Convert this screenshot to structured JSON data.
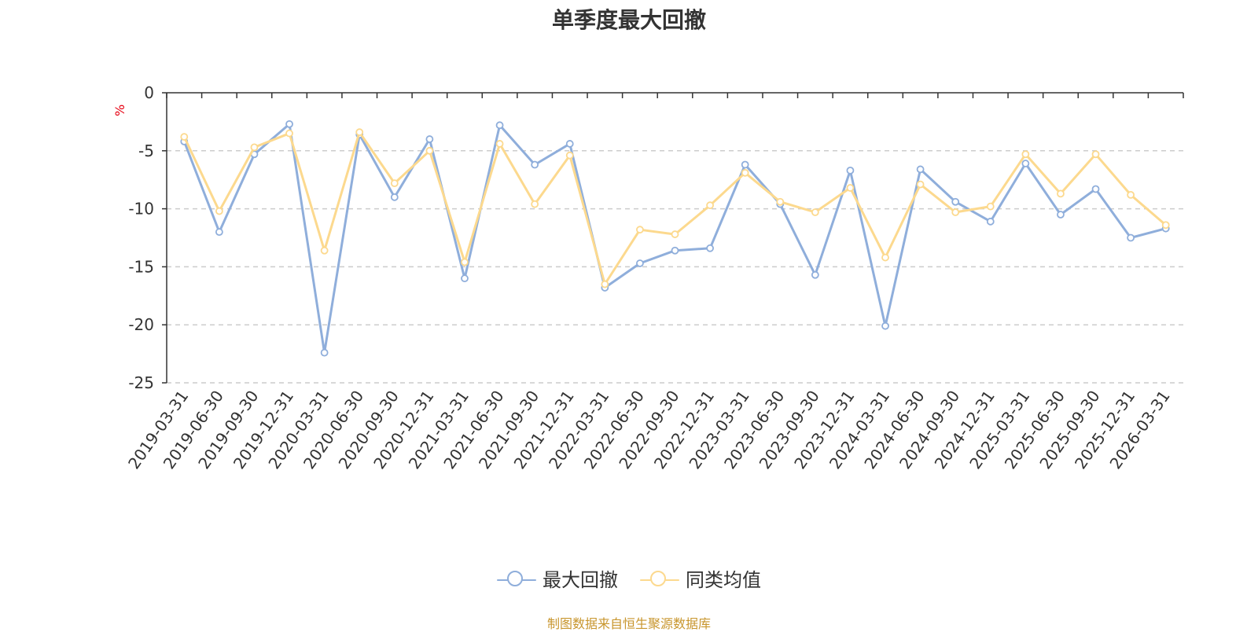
{
  "chart_data": {
    "type": "line",
    "title": "单季度最大回撤",
    "unit_label": "%",
    "source": "制图数据来自恒生聚源数据库",
    "x": [
      "2019-03-31",
      "2019-06-30",
      "2019-09-30",
      "2019-12-31",
      "2020-03-31",
      "2020-06-30",
      "2020-09-30",
      "2020-12-31",
      "2021-03-31",
      "2021-06-30",
      "2021-09-30",
      "2021-12-31",
      "2022-03-31",
      "2022-06-30",
      "2022-09-30",
      "2022-12-31",
      "2023-03-31",
      "2023-06-30",
      "2023-09-30",
      "2023-12-31",
      "2024-03-31",
      "2024-06-30",
      "2024-09-30",
      "2024-12-31",
      "2025-03-31",
      "2025-06-30",
      "2025-09-30",
      "2025-12-31",
      "2026-03-31"
    ],
    "ylim": [
      -25,
      0
    ],
    "yticks": [
      0,
      -5,
      -10,
      -15,
      -20,
      -25
    ],
    "grid": true,
    "legend_position": "bottom",
    "series": [
      {
        "name": "最大回撤",
        "color": "#8faedb",
        "values": [
          -4.2,
          -12.0,
          -5.3,
          -2.7,
          -22.4,
          -3.6,
          -9.0,
          -4.0,
          -16.0,
          -2.8,
          -6.2,
          -4.4,
          -16.8,
          -14.7,
          -13.6,
          -13.4,
          -6.2,
          -9.6,
          -15.7,
          -6.7,
          -20.1,
          -6.6,
          -9.4,
          -11.1,
          -6.1,
          -10.5,
          -8.3,
          -12.5,
          -11.7
        ]
      },
      {
        "name": "同类均值",
        "color": "#fcd98e",
        "values": [
          -3.8,
          -10.2,
          -4.7,
          -3.5,
          -13.6,
          -3.4,
          -7.8,
          -5.0,
          -14.6,
          -4.4,
          -9.6,
          -5.4,
          -16.5,
          -11.8,
          -12.2,
          -9.7,
          -6.9,
          -9.4,
          -10.3,
          -8.2,
          -14.2,
          -7.9,
          -10.3,
          -9.8,
          -5.3,
          -8.7,
          -5.3,
          -8.8,
          -11.4
        ]
      }
    ]
  }
}
